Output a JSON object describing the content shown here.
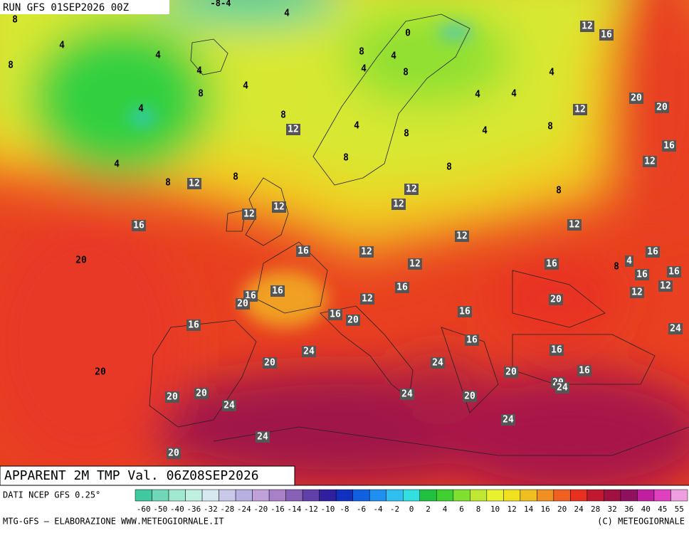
{
  "header": {
    "run": "RUN GFS 01SEP2026 00Z",
    "top_label": "-8-4"
  },
  "map_labels": [
    4,
    4,
    4,
    4,
    4,
    4,
    4,
    4,
    4,
    4,
    4,
    4,
    4,
    4,
    8,
    8,
    8,
    8,
    8,
    8,
    8,
    8,
    8,
    8,
    8,
    8,
    8,
    8,
    0,
    12,
    12,
    12,
    12,
    12,
    12,
    12,
    12,
    12,
    12,
    12,
    12,
    12,
    12,
    12,
    12,
    16,
    16,
    16,
    16,
    16,
    16,
    16,
    16,
    16,
    16,
    16,
    16,
    16,
    16,
    16,
    16,
    16,
    20,
    20,
    20,
    20,
    20,
    20,
    20,
    20,
    20,
    20,
    20,
    20,
    20,
    20,
    24,
    24,
    24,
    24,
    24,
    24,
    24,
    24,
    4
  ],
  "footer": {
    "title": "APPARENT 2M TMP Val. 06Z08SEP2026",
    "source": "DATI NCEP GFS 0.25°",
    "credit": "MTG-GFS — ELABORAZIONE WWW.METEOGIORNALE.IT",
    "copyright": "(C) METEOGIORNALE"
  },
  "colorbar": {
    "labels": [
      -60,
      -50,
      -40,
      -36,
      -32,
      -28,
      -24,
      -20,
      -16,
      -14,
      -12,
      -10,
      -8,
      -6,
      -4,
      -2,
      0,
      2,
      4,
      6,
      8,
      10,
      12,
      14,
      16,
      20,
      24,
      28,
      32,
      36,
      40,
      45,
      55
    ],
    "colors": [
      "#40c8a0",
      "#70d8b8",
      "#a0e8d0",
      "#c0f0e0",
      "#d8e8f0",
      "#c8c8e8",
      "#b8b0e0",
      "#c0a0d8",
      "#a880c8",
      "#8860b8",
      "#6040a8",
      "#3020a0",
      "#1030c0",
      "#1060e0",
      "#2090f0",
      "#30c0f0",
      "#30e0e0",
      "#20c040",
      "#40d030",
      "#80e030",
      "#c0e830",
      "#e8f030",
      "#f0e020",
      "#f0c020",
      "#f09020",
      "#f06020",
      "#e83020",
      "#c01830",
      "#a01040",
      "#901060",
      "#c020a0",
      "#e040c0",
      "#f0a0e0"
    ]
  }
}
